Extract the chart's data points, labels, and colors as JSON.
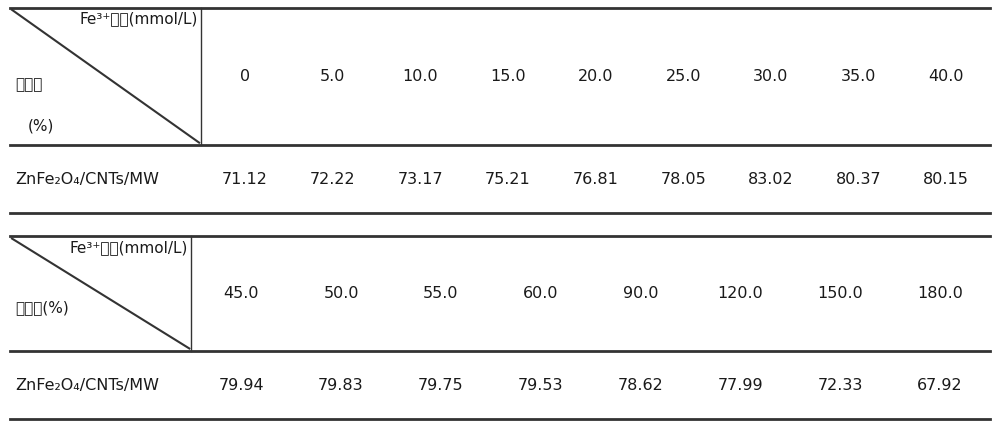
{
  "table1_header_top": "Fe³⁺浓度(mmol/L)",
  "table1_header_bot1": "降解率",
  "table1_header_bot2": "(%)",
  "table1_cols": [
    "0",
    "5.0",
    "10.0",
    "15.0",
    "20.0",
    "25.0",
    "30.0",
    "35.0",
    "40.0"
  ],
  "table1_row_label": "ZnFe₂O₄/CNTs/MW",
  "table1_row_values": [
    "71.12",
    "72.22",
    "73.17",
    "75.21",
    "76.81",
    "78.05",
    "83.02",
    "80.37",
    "80.15"
  ],
  "table2_header_top": "Fe³⁺浓度(mmol/L)",
  "table2_header_bot": "降解率(%)",
  "table2_cols": [
    "45.0",
    "50.0",
    "55.0",
    "60.0",
    "90.0",
    "120.0",
    "150.0",
    "180.0"
  ],
  "table2_row_label": "ZnFe₂O₄/CNTs/MW",
  "table2_row_values": [
    "79.94",
    "79.83",
    "79.75",
    "79.53",
    "78.62",
    "77.99",
    "72.33",
    "67.92"
  ],
  "bg_color": "#ffffff",
  "text_color": "#1a1a1a",
  "line_color": "#333333",
  "font_size": 11.5,
  "row_label_font_size": 11.5
}
